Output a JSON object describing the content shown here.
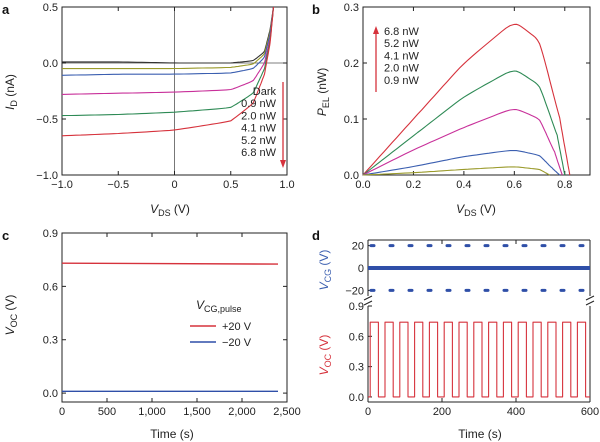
{
  "panels": [
    {
      "label": "a",
      "xlabel_main": "V",
      "xlabel_sub": "DS",
      "xlabel_unit": " (V)",
      "ylabel_main": "I",
      "ylabel_sub": "D",
      "ylabel_unit": " (nA)"
    },
    {
      "label": "b",
      "xlabel_main": "V",
      "xlabel_sub": "DS",
      "xlabel_unit": " (V)",
      "ylabel_main": "P",
      "ylabel_sub": "EL",
      "ylabel_unit": " (nW)"
    },
    {
      "label": "c",
      "xlabel_main": "Time (s)",
      "xlabel_sub": "",
      "xlabel_unit": "",
      "ylabel_main": "V",
      "ylabel_sub": "OC",
      "ylabel_unit": " (V)"
    },
    {
      "label": "d",
      "xlabel_main": "Time (s)",
      "xlabel_sub": "",
      "xlabel_unit": "",
      "ylabel_main": "V",
      "ylabel_sub": "OC",
      "ylabel_unit": " (V)",
      "ylabel2_main": "V",
      "ylabel2_sub": "CG",
      "ylabel2_unit": " (V)"
    }
  ],
  "colors": {
    "dark": "#333333",
    "p09": "#9a9a2a",
    "p20": "#3b5fb0",
    "p41": "#c8309a",
    "p52": "#2e8a55",
    "p68": "#d6323c",
    "neg20": "#2f4fa8",
    "axis": "#222222"
  },
  "chart_data": [
    {
      "panel": "a",
      "type": "line",
      "xlim": [
        -1.0,
        1.0
      ],
      "ylim": [
        -1.0,
        0.5
      ],
      "xticks": [
        -1.0,
        -0.5,
        0,
        0.5,
        1.0
      ],
      "xtick_labels": [
        "−1.0",
        "−0.5",
        "0",
        "0.5",
        "1.0"
      ],
      "yticks": [
        -1.0,
        -0.5,
        0,
        0.5
      ],
      "ytick_labels": [
        "−1.0",
        "−0.5",
        "0.0",
        "0.5"
      ],
      "legend_placement": "right",
      "legend_arrow": "down",
      "series": [
        {
          "name": "Dark",
          "color_key": "dark",
          "isc": 0.0,
          "x": [
            -1.0,
            -0.5,
            0,
            0.5,
            0.7,
            0.8,
            0.85,
            0.88
          ],
          "y": [
            0.01,
            0.01,
            0.0,
            0.0,
            0.02,
            0.1,
            0.3,
            0.5
          ]
        },
        {
          "name": "0.9 nW",
          "color_key": "p09",
          "isc": -0.05,
          "x": [
            -1.0,
            -0.5,
            0,
            0.5,
            0.7,
            0.8,
            0.85,
            0.88
          ],
          "y": [
            -0.05,
            -0.05,
            -0.05,
            -0.04,
            -0.01,
            0.08,
            0.28,
            0.5
          ]
        },
        {
          "name": "2.0 nW",
          "color_key": "p20",
          "isc": -0.1,
          "x": [
            -1.0,
            -0.5,
            0,
            0.5,
            0.7,
            0.8,
            0.85,
            0.88
          ],
          "y": [
            -0.11,
            -0.1,
            -0.1,
            -0.09,
            -0.05,
            0.05,
            0.26,
            0.5
          ]
        },
        {
          "name": "4.1 nW",
          "color_key": "p41",
          "isc": -0.27,
          "x": [
            -1.0,
            -0.5,
            0,
            0.5,
            0.7,
            0.8,
            0.85,
            0.88
          ],
          "y": [
            -0.28,
            -0.27,
            -0.26,
            -0.24,
            -0.16,
            0.0,
            0.22,
            0.5
          ]
        },
        {
          "name": "5.2 nW",
          "color_key": "p52",
          "isc": -0.45,
          "x": [
            -1.0,
            -0.5,
            0,
            0.5,
            0.7,
            0.8,
            0.85,
            0.88
          ],
          "y": [
            -0.47,
            -0.46,
            -0.44,
            -0.4,
            -0.27,
            -0.05,
            0.2,
            0.5
          ]
        },
        {
          "name": "6.8 nW",
          "color_key": "p68",
          "isc": -0.62,
          "x": [
            -1.0,
            -0.5,
            0,
            0.5,
            0.7,
            0.8,
            0.85,
            0.88
          ],
          "y": [
            -0.65,
            -0.63,
            -0.6,
            -0.52,
            -0.36,
            -0.1,
            0.18,
            0.5
          ]
        }
      ]
    },
    {
      "panel": "b",
      "type": "line",
      "xlim": [
        0,
        0.9
      ],
      "ylim": [
        0,
        0.3
      ],
      "xticks": [
        0,
        0.2,
        0.4,
        0.6,
        0.8
      ],
      "xtick_labels": [
        "0.0",
        "0.2",
        "0.4",
        "0.6",
        "0.8"
      ],
      "yticks": [
        0,
        0.1,
        0.2,
        0.3
      ],
      "ytick_labels": [
        "0.0",
        "0.1",
        "0.2",
        "0.3"
      ],
      "legend_placement": "top-left",
      "legend_arrow": "up",
      "series": [
        {
          "name": "6.8 nW",
          "color_key": "p68",
          "x": [
            0,
            0.2,
            0.4,
            0.6,
            0.7,
            0.78,
            0.82
          ],
          "y": [
            0,
            0.1,
            0.2,
            0.275,
            0.24,
            0.1,
            0
          ]
        },
        {
          "name": "5.2 nW",
          "color_key": "p52",
          "x": [
            0,
            0.2,
            0.4,
            0.6,
            0.7,
            0.77,
            0.8
          ],
          "y": [
            0,
            0.07,
            0.14,
            0.19,
            0.16,
            0.07,
            0
          ]
        },
        {
          "name": "4.1 nW",
          "color_key": "p41",
          "x": [
            0,
            0.2,
            0.4,
            0.6,
            0.7,
            0.76,
            0.79
          ],
          "y": [
            0,
            0.045,
            0.085,
            0.12,
            0.1,
            0.04,
            0
          ]
        },
        {
          "name": "2.0 nW",
          "color_key": "p20",
          "x": [
            0,
            0.2,
            0.4,
            0.6,
            0.7,
            0.75,
            0.78
          ],
          "y": [
            0,
            0.015,
            0.033,
            0.045,
            0.035,
            0.012,
            0
          ]
        },
        {
          "name": "0.9 nW",
          "color_key": "p09",
          "x": [
            0,
            0.2,
            0.4,
            0.6,
            0.7,
            0.74
          ],
          "y": [
            0,
            0.004,
            0.01,
            0.015,
            0.01,
            0
          ]
        }
      ]
    },
    {
      "panel": "c",
      "type": "line",
      "xlim": [
        0,
        2500
      ],
      "ylim": [
        -0.05,
        0.9
      ],
      "xticks": [
        0,
        500,
        1000,
        1500,
        2000,
        2500
      ],
      "xtick_labels": [
        "0",
        "500",
        "1,000",
        "1,500",
        "2,000",
        "2,500"
      ],
      "yticks": [
        0,
        0.3,
        0.6,
        0.9
      ],
      "ytick_labels": [
        "0.0",
        "0.3",
        "0.6",
        "0.9"
      ],
      "legend_title_main": "V",
      "legend_title_sub": "CG,pulse",
      "legend_placement": "center-right",
      "series": [
        {
          "name": "+20 V",
          "color_key": "p68",
          "x": [
            0,
            2400
          ],
          "y": [
            0.73,
            0.725
          ]
        },
        {
          "name": "−20 V",
          "color_key": "neg20",
          "x": [
            0,
            2400
          ],
          "y": [
            0.01,
            0.01
          ]
        }
      ]
    },
    {
      "panel": "d",
      "type": "line",
      "xlim": [
        0,
        600
      ],
      "top_ylim": [
        -25,
        25
      ],
      "top_yticks": [
        -20,
        0,
        20
      ],
      "top_ytick_labels": [
        "−20",
        "0",
        "20"
      ],
      "bottom_ylim": [
        -0.05,
        0.9
      ],
      "bottom_yticks": [
        0,
        0.3,
        0.6,
        0.9
      ],
      "bottom_ytick_labels": [
        "0.0",
        "0.3",
        "0.6",
        "0.9"
      ],
      "xticks": [
        0,
        200,
        400,
        600
      ],
      "xtick_labels": [
        "0",
        "200",
        "400",
        "600"
      ],
      "pulse_period_s": 40,
      "pulse_high_fraction": 0.55,
      "vcg_values": [
        20,
        0,
        -20
      ],
      "voc_high": 0.74,
      "voc_low": 0.0
    }
  ]
}
